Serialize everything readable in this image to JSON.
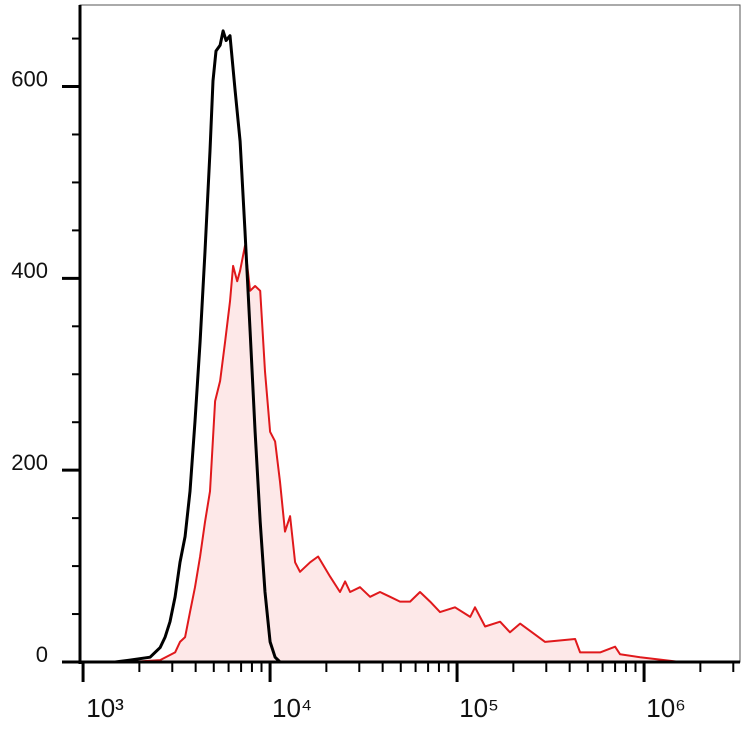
{
  "chart_data": {
    "type": "histogram-overlay",
    "xscale": "log",
    "xlim": [
      963,
      3258367
    ],
    "ylim": [
      0,
      685
    ],
    "xticks": [
      {
        "value": 1000,
        "label": "10³"
      },
      {
        "value": 10000,
        "label": "10⁴"
      },
      {
        "value": 100000,
        "label": "10⁵"
      },
      {
        "value": 1000000,
        "label": "10⁶"
      }
    ],
    "xminor_ticks": [
      2000,
      3000,
      4000,
      5000,
      6000,
      7000,
      8000,
      9000,
      20000,
      30000,
      40000,
      50000,
      60000,
      70000,
      80000,
      90000,
      200000,
      300000,
      400000,
      500000,
      600000,
      700000,
      800000,
      900000,
      2000000,
      3000000
    ],
    "yticks": [
      0,
      200,
      400,
      600
    ],
    "yminor_ticks": [
      50,
      100,
      150,
      250,
      300,
      350,
      450,
      500,
      550,
      650
    ],
    "series": [
      {
        "color": "#e0191c",
        "fill": "#fde8e8",
        "x": [
          1783,
          2582,
          3104,
          3301,
          3512,
          3733,
          3970,
          4223,
          4487,
          4775,
          5080,
          5405,
          5746,
          6109,
          6340,
          6668,
          6918,
          7345,
          7816,
          8318,
          8851,
          9397,
          10000,
          10641,
          11298,
          12023,
          12794,
          13614,
          14454,
          16368,
          18072,
          20941,
          23659,
          25177,
          26792,
          30269,
          34277,
          38726,
          43853,
          49545,
          56105,
          63387,
          71779,
          81096,
          97499,
          117490,
          124738,
          141254,
          169824,
          191867,
          217270,
          295801,
          427563,
          454988,
          582103,
          699842,
          744732,
          952796,
          1559553,
          3258367
        ],
        "values": [
          0,
          2,
          10,
          21,
          26,
          52,
          78,
          110,
          146,
          178,
          272,
          293,
          334,
          376,
          413,
          397,
          408,
          434,
          387,
          392,
          387,
          303,
          240,
          230,
          188,
          136,
          152,
          104,
          94,
          104,
          110,
          89,
          73,
          84,
          73,
          78,
          68,
          73,
          68,
          63,
          63,
          73,
          63,
          52,
          57,
          47,
          57,
          37,
          42,
          31,
          40,
          21,
          24,
          10,
          10,
          16,
          8,
          5,
          0,
          0
        ]
      },
      {
        "color": "#000000",
        "x": [
          963,
          1483,
          1783,
          2282,
          2582,
          2745,
          2918,
          3104,
          3301,
          3512,
          3733,
          3970,
          4223,
          4487,
          4775,
          4955,
          5141,
          5405,
          5610,
          5818,
          6109,
          6501,
          6918,
          7345,
          7816,
          8318,
          8851,
          9397,
          10000,
          10641,
          11298,
          3258367
        ],
        "values": [
          0,
          0,
          2,
          5,
          15,
          26,
          42,
          68,
          104,
          131,
          178,
          251,
          334,
          428,
          533,
          606,
          637,
          643,
          658,
          648,
          653,
          596,
          543,
          449,
          345,
          240,
          146,
          73,
          21,
          5,
          0,
          0
        ]
      }
    ]
  }
}
